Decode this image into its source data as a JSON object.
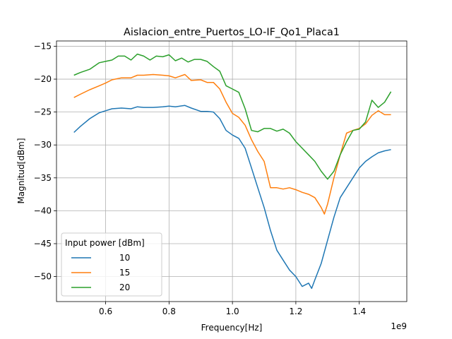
{
  "chart_data": {
    "type": "line",
    "title": "Aislacion_entre_Puertos_LO-IF_Qo1_Placa1",
    "xlabel": "Frequency[Hz]",
    "ylabel": "Magnitud[dBm]",
    "x_offset_label": "1e9",
    "xlim": [
      0.445,
      1.55
    ],
    "ylim": [
      -53.8,
      -14.2
    ],
    "x_scale": 1000000000,
    "xticks": [
      0.6,
      0.8,
      1.0,
      1.2,
      1.4
    ],
    "xtick_labels": [
      "0.6",
      "0.8",
      "1.0",
      "1.2",
      "1.4"
    ],
    "yticks": [
      -15,
      -20,
      -25,
      -30,
      -35,
      -40,
      -45,
      -50
    ],
    "ytick_labels": [
      "−15",
      "−20",
      "−25",
      "−30",
      "−35",
      "−40",
      "−45",
      "−50"
    ],
    "grid": true,
    "legend": {
      "title": "Input power [dBm]",
      "placement": "lower-left"
    },
    "series": [
      {
        "name": "10",
        "color": "#1f77b4",
        "x": [
          0.5,
          0.52,
          0.55,
          0.58,
          0.6,
          0.62,
          0.65,
          0.68,
          0.7,
          0.72,
          0.75,
          0.78,
          0.8,
          0.82,
          0.85,
          0.87,
          0.9,
          0.92,
          0.94,
          0.96,
          0.98,
          1.0,
          1.02,
          1.04,
          1.06,
          1.08,
          1.1,
          1.12,
          1.14,
          1.16,
          1.18,
          1.2,
          1.22,
          1.24,
          1.25,
          1.26,
          1.28,
          1.3,
          1.32,
          1.34,
          1.36,
          1.38,
          1.4,
          1.42,
          1.44,
          1.46,
          1.48,
          1.5
        ],
        "y": [
          -28.1,
          -27.2,
          -26.0,
          -25.1,
          -24.8,
          -24.5,
          -24.4,
          -24.5,
          -24.2,
          -24.3,
          -24.3,
          -24.2,
          -24.1,
          -24.2,
          -24.0,
          -24.4,
          -24.9,
          -24.9,
          -25.0,
          -26.0,
          -27.8,
          -28.5,
          -29.0,
          -30.5,
          -33.5,
          -36.5,
          -39.5,
          -43.0,
          -46.0,
          -47.5,
          -49.0,
          -50.0,
          -51.5,
          -51.0,
          -51.8,
          -50.5,
          -48.0,
          -44.5,
          -41.0,
          -38.0,
          -36.5,
          -35.0,
          -33.5,
          -32.5,
          -31.8,
          -31.2,
          -30.9,
          -30.7
        ]
      },
      {
        "name": "15",
        "color": "#ff7f0e",
        "x": [
          0.5,
          0.52,
          0.55,
          0.58,
          0.6,
          0.62,
          0.65,
          0.68,
          0.7,
          0.72,
          0.75,
          0.78,
          0.8,
          0.82,
          0.85,
          0.87,
          0.9,
          0.92,
          0.94,
          0.96,
          0.98,
          1.0,
          1.02,
          1.04,
          1.06,
          1.08,
          1.1,
          1.12,
          1.14,
          1.16,
          1.18,
          1.2,
          1.22,
          1.24,
          1.26,
          1.28,
          1.29,
          1.3,
          1.32,
          1.34,
          1.36,
          1.38,
          1.4,
          1.42,
          1.44,
          1.46,
          1.48,
          1.5
        ],
        "y": [
          -22.8,
          -22.3,
          -21.6,
          -21.0,
          -20.6,
          -20.1,
          -19.8,
          -19.8,
          -19.4,
          -19.4,
          -19.3,
          -19.4,
          -19.5,
          -19.8,
          -19.3,
          -20.2,
          -20.1,
          -20.5,
          -20.5,
          -21.5,
          -23.5,
          -25.2,
          -25.8,
          -27.0,
          -29.2,
          -31.0,
          -32.5,
          -36.5,
          -36.5,
          -36.7,
          -36.5,
          -36.8,
          -37.2,
          -37.5,
          -38.0,
          -39.5,
          -40.5,
          -39.0,
          -35.0,
          -31.5,
          -28.2,
          -27.8,
          -27.5,
          -26.8,
          -25.5,
          -24.8,
          -25.4,
          -25.4
        ]
      },
      {
        "name": "20",
        "color": "#2ca02c",
        "x": [
          0.5,
          0.52,
          0.55,
          0.58,
          0.6,
          0.62,
          0.64,
          0.66,
          0.68,
          0.7,
          0.72,
          0.74,
          0.76,
          0.78,
          0.8,
          0.82,
          0.84,
          0.86,
          0.88,
          0.9,
          0.92,
          0.94,
          0.96,
          0.98,
          1.0,
          1.02,
          1.04,
          1.06,
          1.08,
          1.1,
          1.12,
          1.14,
          1.16,
          1.18,
          1.2,
          1.22,
          1.24,
          1.26,
          1.28,
          1.3,
          1.32,
          1.34,
          1.36,
          1.38,
          1.4,
          1.42,
          1.44,
          1.46,
          1.48,
          1.5
        ],
        "y": [
          -19.4,
          -19.0,
          -18.5,
          -17.5,
          -17.3,
          -17.1,
          -16.5,
          -16.5,
          -17.1,
          -16.2,
          -16.5,
          -17.1,
          -16.5,
          -16.6,
          -16.3,
          -17.2,
          -16.8,
          -17.4,
          -17.0,
          -17.0,
          -17.3,
          -18.1,
          -18.8,
          -21.0,
          -21.5,
          -22.0,
          -24.5,
          -27.8,
          -28.0,
          -27.5,
          -27.5,
          -27.9,
          -27.6,
          -28.2,
          -29.5,
          -30.5,
          -31.5,
          -32.5,
          -34.0,
          -35.2,
          -34.0,
          -31.5,
          -29.5,
          -27.8,
          -27.6,
          -26.5,
          -23.2,
          -24.3,
          -23.5,
          -21.9
        ]
      }
    ]
  }
}
